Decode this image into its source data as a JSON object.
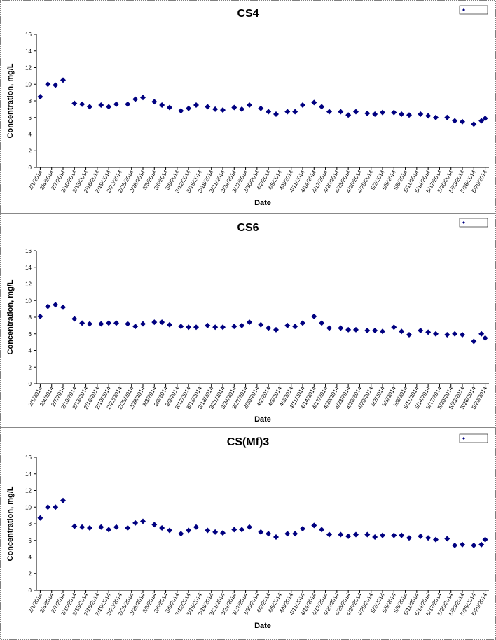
{
  "chart_data": [
    {
      "type": "scatter",
      "title": "CS4",
      "x_label": "Date",
      "y_label": "Concentration, mg/L",
      "x": [
        "2/1/2014",
        "2/3/2014",
        "2/5/2014",
        "2/7/2014",
        "2/10/2014",
        "2/12/2014",
        "2/14/2014",
        "2/17/2014",
        "2/19/2014",
        "2/21/2014",
        "2/24/2014",
        "2/26/2014",
        "2/28/2014",
        "3/3/2014",
        "3/5/2014",
        "3/7/2014",
        "3/10/2014",
        "3/12/2014",
        "3/14/2014",
        "3/17/2014",
        "3/19/2014",
        "3/21/2014",
        "3/24/2014",
        "3/26/2014",
        "3/28/2014",
        "3/31/2014",
        "4/2/2014",
        "4/4/2014",
        "4/7/2014",
        "4/9/2014",
        "4/11/2014",
        "4/14/2014",
        "4/16/2014",
        "4/18/2014",
        "4/21/2014",
        "4/23/2014",
        "4/25/2014",
        "4/28/2014",
        "4/30/2014",
        "5/2/2014",
        "5/5/2014",
        "5/7/2014",
        "5/9/2014",
        "5/12/2014",
        "5/14/2014",
        "5/16/2014",
        "5/19/2014",
        "5/21/2014",
        "5/23/2014",
        "5/26/2014",
        "5/28/2014",
        "5/29/2014"
      ],
      "values": [
        8.5,
        10.0,
        9.9,
        10.5,
        7.7,
        7.6,
        7.3,
        7.5,
        7.3,
        7.6,
        7.6,
        8.2,
        8.4,
        7.9,
        7.5,
        7.2,
        6.8,
        7.1,
        7.5,
        7.3,
        7.0,
        6.9,
        7.2,
        7.0,
        7.5,
        7.1,
        6.7,
        6.4,
        6.7,
        6.7,
        7.5,
        7.8,
        7.3,
        6.7,
        6.7,
        6.3,
        6.7,
        6.5,
        6.4,
        6.6,
        6.6,
        6.4,
        6.3,
        6.4,
        6.2,
        6.0,
        6.0,
        5.6,
        5.5,
        5.2,
        5.6,
        5.9
      ],
      "color": "#000080",
      "ylim": [
        0,
        16
      ],
      "yticks": [
        0,
        2,
        4,
        6,
        8,
        10,
        12,
        14,
        16
      ],
      "xlim": [
        "1/31/2014",
        "5/30/2014"
      ],
      "xticks": [
        "2/1/2014",
        "2/4/2014",
        "2/7/2014",
        "2/10/2014",
        "2/13/2014",
        "2/16/2014",
        "2/19/2014",
        "2/22/2014",
        "2/25/2014",
        "2/28/2014",
        "3/3/2014",
        "3/6/2014",
        "3/9/2014",
        "3/12/2014",
        "3/15/2014",
        "3/18/2014",
        "3/21/2014",
        "3/24/2014",
        "3/27/2014",
        "3/30/2014",
        "4/2/2014",
        "4/5/2014",
        "4/8/2014",
        "4/11/2014",
        "4/14/2014",
        "4/17/2014",
        "4/20/2014",
        "4/23/2014",
        "4/26/2014",
        "4/29/2014",
        "5/2/2014",
        "5/5/2014",
        "5/8/2014",
        "5/11/2014",
        "5/14/2014",
        "5/17/2014",
        "5/20/2014",
        "5/23/2014",
        "5/26/2014",
        "5/29/2014"
      ]
    },
    {
      "type": "scatter",
      "title": "CS6",
      "x_label": "Date",
      "y_label": "Concentration, mg/L",
      "x": [
        "2/1/2014",
        "2/3/2014",
        "2/5/2014",
        "2/7/2014",
        "2/10/2014",
        "2/12/2014",
        "2/14/2014",
        "2/17/2014",
        "2/19/2014",
        "2/21/2014",
        "2/24/2014",
        "2/26/2014",
        "2/28/2014",
        "3/3/2014",
        "3/5/2014",
        "3/7/2014",
        "3/10/2014",
        "3/12/2014",
        "3/14/2014",
        "3/17/2014",
        "3/19/2014",
        "3/21/2014",
        "3/24/2014",
        "3/26/2014",
        "3/28/2014",
        "3/31/2014",
        "4/2/2014",
        "4/4/2014",
        "4/7/2014",
        "4/9/2014",
        "4/11/2014",
        "4/14/2014",
        "4/16/2014",
        "4/18/2014",
        "4/21/2014",
        "4/23/2014",
        "4/25/2014",
        "4/28/2014",
        "4/30/2014",
        "5/2/2014",
        "5/5/2014",
        "5/7/2014",
        "5/9/2014",
        "5/12/2014",
        "5/14/2014",
        "5/16/2014",
        "5/19/2014",
        "5/21/2014",
        "5/23/2014",
        "5/26/2014",
        "5/28/2014",
        "5/29/2014"
      ],
      "values": [
        8.1,
        9.3,
        9.5,
        9.2,
        7.8,
        7.3,
        7.2,
        7.2,
        7.3,
        7.3,
        7.2,
        6.9,
        7.2,
        7.4,
        7.4,
        7.1,
        6.9,
        6.8,
        6.8,
        7.0,
        6.8,
        6.8,
        6.9,
        7.0,
        7.4,
        7.1,
        6.7,
        6.5,
        7.0,
        6.9,
        7.3,
        8.1,
        7.3,
        6.7,
        6.7,
        6.5,
        6.5,
        6.4,
        6.4,
        6.3,
        6.8,
        6.3,
        5.9,
        6.4,
        6.2,
        6.0,
        5.9,
        6.0,
        5.9,
        5.1,
        6.0,
        5.5
      ],
      "color": "#000080",
      "ylim": [
        0,
        16
      ],
      "yticks": [
        0,
        2,
        4,
        6,
        8,
        10,
        12,
        14,
        16
      ],
      "xlim": [
        "1/31/2014",
        "5/30/2014"
      ],
      "xticks": [
        "2/1/2014",
        "2/4/2014",
        "2/7/2014",
        "2/10/2014",
        "2/13/2014",
        "2/16/2014",
        "2/19/2014",
        "2/22/2014",
        "2/25/2014",
        "2/28/2014",
        "3/3/2014",
        "3/6/2014",
        "3/9/2014",
        "3/12/2014",
        "3/15/2014",
        "3/18/2014",
        "3/21/2014",
        "3/24/2014",
        "3/27/2014",
        "3/30/2014",
        "4/2/2014",
        "4/5/2014",
        "4/8/2014",
        "4/11/2014",
        "4/14/2014",
        "4/17/2014",
        "4/20/2014",
        "4/23/2014",
        "4/26/2014",
        "4/29/2014",
        "5/2/2014",
        "5/5/2014",
        "5/8/2014",
        "5/11/2014",
        "5/14/2014",
        "5/17/2014",
        "5/20/2014",
        "5/23/2014",
        "5/26/2014",
        "5/29/2014"
      ]
    },
    {
      "type": "scatter",
      "title": "CS(Mf)3",
      "x_label": "Date",
      "y_label": "Concentration, mg/L",
      "x": [
        "2/1/2014",
        "2/3/2014",
        "2/5/2014",
        "2/7/2014",
        "2/10/2014",
        "2/12/2014",
        "2/14/2014",
        "2/17/2014",
        "2/19/2014",
        "2/21/2014",
        "2/24/2014",
        "2/26/2014",
        "2/28/2014",
        "3/3/2014",
        "3/5/2014",
        "3/7/2014",
        "3/10/2014",
        "3/12/2014",
        "3/14/2014",
        "3/17/2014",
        "3/19/2014",
        "3/21/2014",
        "3/24/2014",
        "3/26/2014",
        "3/28/2014",
        "3/31/2014",
        "4/2/2014",
        "4/4/2014",
        "4/7/2014",
        "4/9/2014",
        "4/11/2014",
        "4/14/2014",
        "4/16/2014",
        "4/18/2014",
        "4/21/2014",
        "4/23/2014",
        "4/25/2014",
        "4/28/2014",
        "4/30/2014",
        "5/2/2014",
        "5/5/2014",
        "5/7/2014",
        "5/9/2014",
        "5/12/2014",
        "5/14/2014",
        "5/16/2014",
        "5/19/2014",
        "5/21/2014",
        "5/23/2014",
        "5/26/2014",
        "5/28/2014",
        "5/29/2014"
      ],
      "values": [
        8.7,
        10.0,
        10.0,
        10.8,
        7.7,
        7.6,
        7.5,
        7.6,
        7.3,
        7.6,
        7.5,
        8.1,
        8.3,
        7.9,
        7.5,
        7.2,
        6.8,
        7.2,
        7.6,
        7.2,
        7.0,
        6.9,
        7.3,
        7.3,
        7.6,
        7.0,
        6.8,
        6.4,
        6.8,
        6.8,
        7.4,
        7.8,
        7.3,
        6.7,
        6.7,
        6.5,
        6.7,
        6.7,
        6.4,
        6.6,
        6.6,
        6.6,
        6.3,
        6.5,
        6.3,
        6.1,
        6.2,
        5.4,
        5.5,
        5.4,
        5.5,
        6.1
      ],
      "color": "#000080",
      "ylim": [
        0,
        16
      ],
      "yticks": [
        0,
        2,
        4,
        6,
        8,
        10,
        12,
        14,
        16
      ],
      "xlim": [
        "1/31/2014",
        "5/30/2014"
      ],
      "xticks": [
        "2/1/2014",
        "2/4/2014",
        "2/7/2014",
        "2/10/2014",
        "2/13/2014",
        "2/16/2014",
        "2/19/2014",
        "2/22/2014",
        "2/25/2014",
        "2/28/2014",
        "3/3/2014",
        "3/6/2014",
        "3/9/2014",
        "3/12/2014",
        "3/15/2014",
        "3/18/2014",
        "3/21/2014",
        "3/24/2014",
        "3/27/2014",
        "3/30/2014",
        "4/2/2014",
        "4/5/2014",
        "4/8/2014",
        "4/11/2014",
        "4/14/2014",
        "4/17/2014",
        "4/20/2014",
        "4/23/2014",
        "4/26/2014",
        "4/29/2014",
        "5/2/2014",
        "5/5/2014",
        "5/8/2014",
        "5/11/2014",
        "5/14/2014",
        "5/17/2014",
        "5/20/2014",
        "5/23/2014",
        "5/26/2014",
        "5/29/2014"
      ]
    }
  ]
}
